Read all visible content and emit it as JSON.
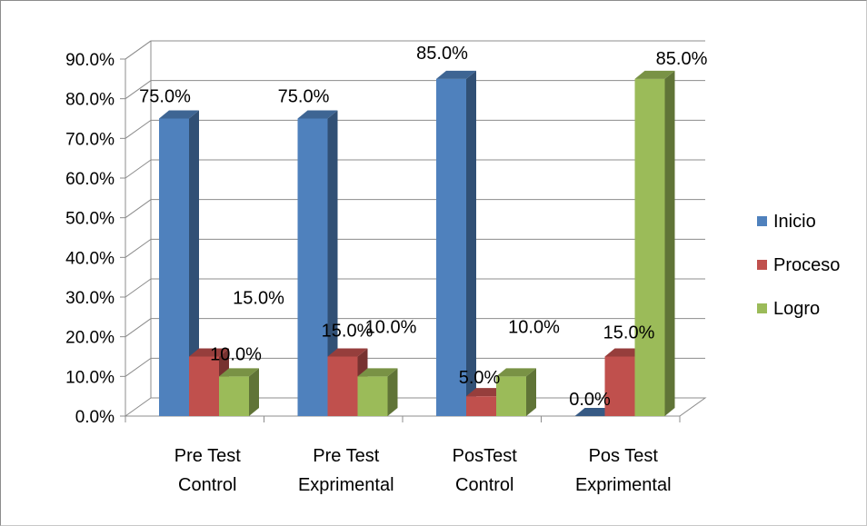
{
  "chart_data": {
    "type": "bar",
    "categories": [
      [
        "Pre Test",
        "Control"
      ],
      [
        "Pre Test",
        "Exprimental"
      ],
      [
        "PosTest",
        "Control"
      ],
      [
        "Pos Test",
        "Exprimental"
      ]
    ],
    "series": [
      {
        "name": "Inicio",
        "color": "#4f81bd",
        "values": [
          75.0,
          75.0,
          85.0,
          0.0
        ],
        "labels": [
          "75.0%",
          "75.0%",
          "85.0%",
          "0.0%"
        ]
      },
      {
        "name": "Proceso",
        "color": "#c0504d",
        "values": [
          15.0,
          15.0,
          5.0,
          15.0
        ],
        "labels": [
          "15.0%",
          "15.0%",
          "5.0%",
          "15.0%"
        ]
      },
      {
        "name": "Logro",
        "color": "#9bbb59",
        "values": [
          10.0,
          10.0,
          10.0,
          85.0
        ],
        "labels": [
          "10.0%",
          "10.0%",
          "10.0%",
          "85.0%"
        ]
      }
    ],
    "y_ticks": [
      "0.0%",
      "10.0%",
      "20.0%",
      "30.0%",
      "40.0%",
      "50.0%",
      "60.0%",
      "70.0%",
      "80.0%",
      "90.0%"
    ],
    "ylim": [
      0,
      90
    ],
    "grid": true,
    "legend_position": "right",
    "title": "",
    "xlabel": "",
    "ylabel": ""
  }
}
